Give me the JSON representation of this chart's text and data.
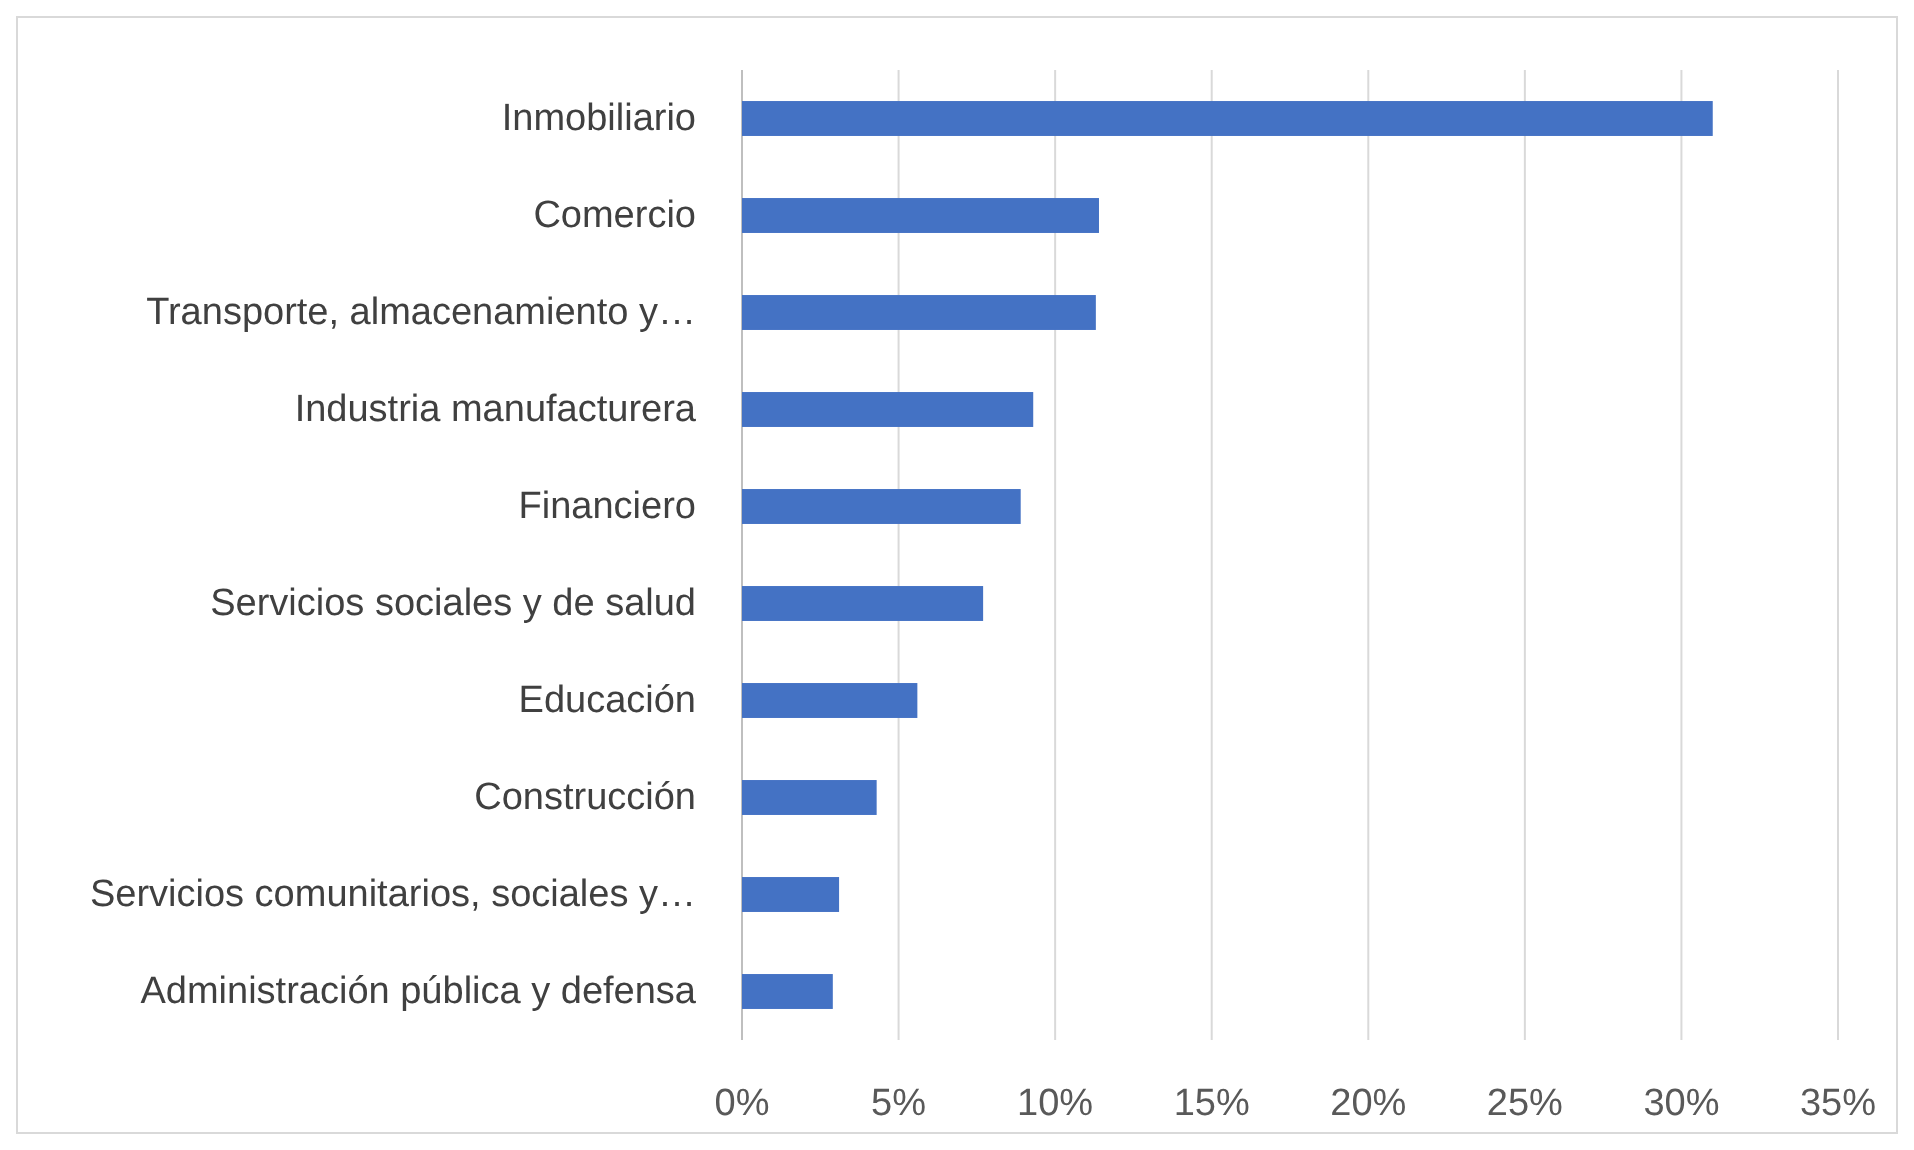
{
  "chart_data": {
    "type": "bar",
    "orientation": "horizontal",
    "categories": [
      "Inmobiliario",
      "Comercio",
      "Transporte, almacenamiento y…",
      "Industria manufacturera",
      "Financiero",
      "Servicios sociales y de salud",
      "Educación",
      "Construcción",
      "Servicios comunitarios, sociales y…",
      "Administración pública y defensa"
    ],
    "values": [
      31.0,
      11.4,
      11.3,
      9.3,
      8.9,
      7.7,
      5.6,
      4.3,
      3.1,
      2.9
    ],
    "color": "#4472c4",
    "xlim": [
      0,
      35
    ],
    "xticks": [
      {
        "value": 0,
        "label": "0%"
      },
      {
        "value": 5,
        "label": "5%"
      },
      {
        "value": 10,
        "label": "10%"
      },
      {
        "value": 15,
        "label": "15%"
      },
      {
        "value": 20,
        "label": "20%"
      },
      {
        "value": 25,
        "label": "25%"
      },
      {
        "value": 30,
        "label": "30%"
      },
      {
        "value": 35,
        "label": "35%"
      }
    ],
    "grid": "x"
  }
}
